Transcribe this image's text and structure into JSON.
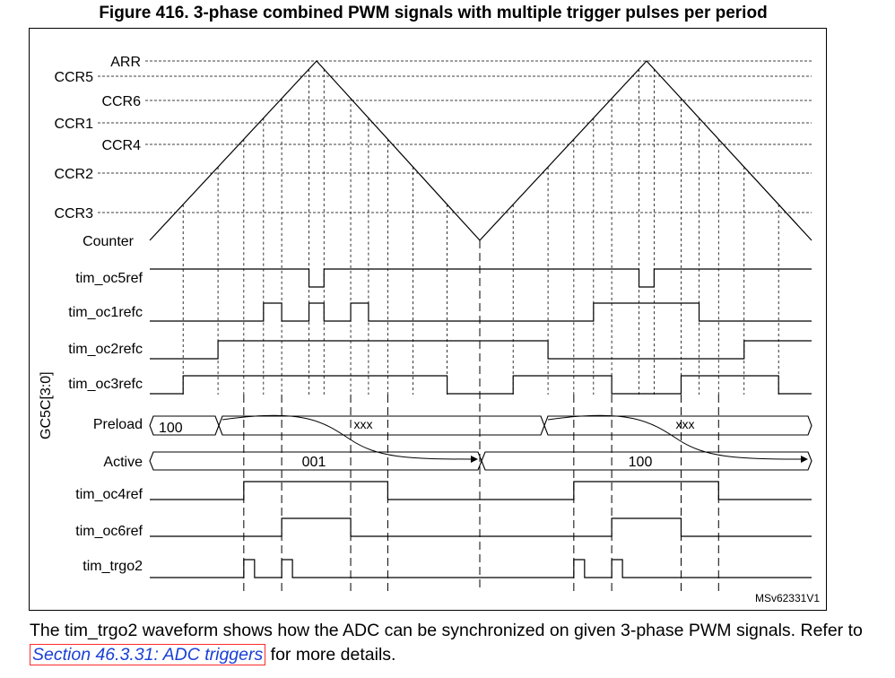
{
  "figure": {
    "title": "Figure 416. 3-phase combined PWM signals with multiple trigger pulses per period",
    "version_tag": "MSv62331V1"
  },
  "counter_levels": [
    {
      "name": "ARR",
      "value": 100
    },
    {
      "name": "CCR5",
      "value": 95
    },
    {
      "name": "CCR6",
      "value": 77
    },
    {
      "name": "CCR1",
      "value": 65
    },
    {
      "name": "CCR4",
      "value": 52
    },
    {
      "name": "CCR2",
      "value": 35
    },
    {
      "name": "CCR3",
      "value": 12
    }
  ],
  "counter": {
    "label": "Counter",
    "start": -10,
    "peaks": [
      100,
      100
    ],
    "valleys": [
      -10,
      -10
    ]
  },
  "signals": [
    {
      "name": "tim_oc5ref",
      "initial": 1,
      "toggles": [
        [
          0,
          "CCR5",
          "up"
        ],
        [
          0,
          "CCR5",
          "down"
        ],
        [
          1,
          "CCR5",
          "up"
        ],
        [
          1,
          "CCR5",
          "down"
        ]
      ]
    },
    {
      "name": "tim_oc1refc",
      "initial": 0,
      "toggles": [
        [
          0,
          "CCR1",
          "up"
        ],
        [
          0,
          "CCR6",
          "up"
        ],
        [
          0,
          "CCR5",
          "up"
        ],
        [
          0,
          "CCR5",
          "down"
        ],
        [
          0,
          "CCR6",
          "down"
        ],
        [
          0,
          "CCR1",
          "down"
        ],
        [
          1,
          "CCR1",
          "up"
        ],
        [
          1,
          "CCR1",
          "down"
        ]
      ]
    },
    {
      "name": "tim_oc2refc",
      "initial": 0,
      "toggles": [
        [
          0,
          "CCR2",
          "up"
        ],
        [
          1,
          "CCR2",
          "up"
        ],
        [
          1,
          "CCR2",
          "down"
        ]
      ]
    },
    {
      "name": "tim_oc3refc",
      "initial": 0,
      "toggles": [
        [
          0,
          "CCR3",
          "up"
        ],
        [
          0,
          "CCR3",
          "down"
        ],
        [
          1,
          "CCR3",
          "up"
        ],
        [
          1,
          "CCR6",
          "up"
        ],
        [
          1,
          "CCR6",
          "down"
        ],
        [
          1,
          "CCR3",
          "down"
        ]
      ]
    },
    {
      "name": "tim_oc4ref",
      "initial": 0,
      "toggles": [
        [
          0,
          "CCR4",
          "up"
        ],
        [
          0,
          "CCR4",
          "down"
        ],
        [
          1,
          "CCR4",
          "up"
        ],
        [
          1,
          "CCR4",
          "down"
        ]
      ]
    },
    {
      "name": "tim_oc6ref",
      "initial": 0,
      "toggles": [
        [
          0,
          "CCR6",
          "up"
        ],
        [
          0,
          "CCR6",
          "down"
        ],
        [
          1,
          "CCR6",
          "up"
        ],
        [
          1,
          "CCR6",
          "down"
        ]
      ]
    }
  ],
  "trgo2": {
    "name": "tim_trgo2",
    "pulses": [
      [
        0,
        "CCR4",
        "up"
      ],
      [
        0,
        "CCR6",
        "up"
      ],
      [
        1,
        "CCR4",
        "up"
      ],
      [
        1,
        "CCR6",
        "up"
      ]
    ]
  },
  "buses": {
    "group_label": "GC5C[3:0]",
    "preload": {
      "name": "Preload",
      "values": [
        "100",
        "xxx",
        "xxx"
      ]
    },
    "active": {
      "name": "Active",
      "values": [
        "001",
        "100"
      ]
    }
  },
  "caption": {
    "before": "The tim_trgo2 waveform shows how the ADC can be synchronized on given 3-phase PWM signals. Refer to ",
    "link": "Section 46.3.31: ADC triggers",
    "after": " for more details."
  }
}
